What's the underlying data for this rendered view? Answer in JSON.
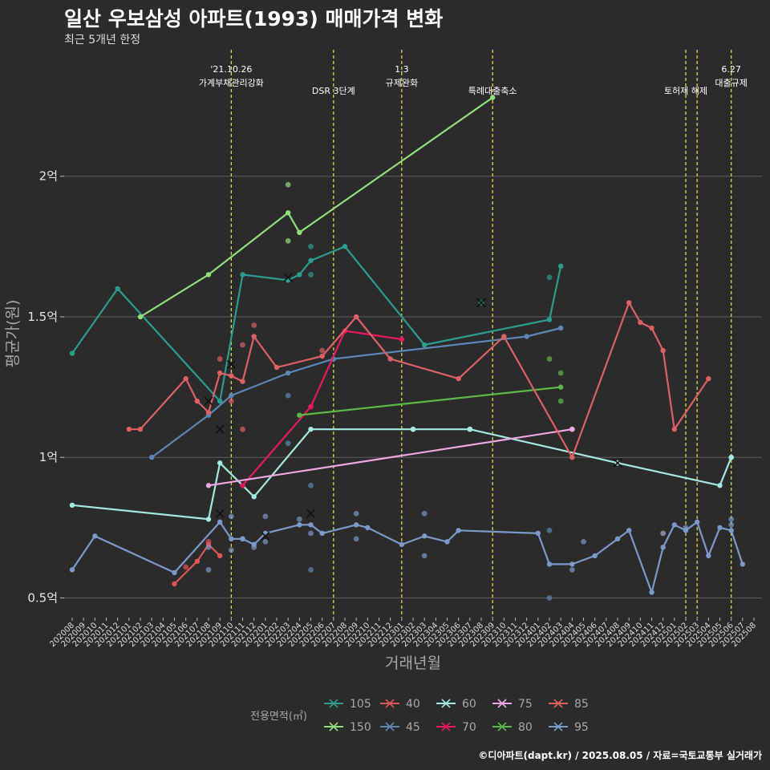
{
  "title": "일산 우보삼성 아파트(1993) 매매가격 변화",
  "subtitle": "최근 5개년 한정",
  "caption": "©디아파트(dapt.kr) / 2025.08.05 / 자료=국토교통부 실거래가",
  "chart_data": {
    "type": "line",
    "xlabel": "거래년월",
    "ylabel": "평균가(원)",
    "ylim": [
      0.43,
      2.45
    ],
    "y_ticks": [
      0.5,
      1,
      1.5,
      2
    ],
    "y_tick_labels": [
      "0.5억",
      "1억",
      "1.5억",
      "2억"
    ],
    "grid": true,
    "x_months": [
      "202008",
      "202009",
      "202010",
      "202011",
      "202012",
      "202101",
      "202102",
      "202103",
      "202104",
      "202105",
      "202106",
      "202107",
      "202108",
      "202109",
      "202110",
      "202111",
      "202112",
      "202201",
      "202202",
      "202203",
      "202204",
      "202205",
      "202206",
      "202207",
      "202208",
      "202209",
      "202210",
      "202211",
      "202212",
      "202301",
      "202302",
      "202303",
      "202304",
      "202305",
      "202306",
      "202307",
      "202308",
      "202309",
      "202310",
      "202311",
      "202312",
      "202401",
      "202402",
      "202403",
      "202404",
      "202405",
      "202406",
      "202407",
      "202408",
      "202409",
      "202410",
      "202411",
      "202412",
      "202501",
      "202502",
      "202503",
      "202504",
      "202505",
      "202506",
      "202507",
      "202508"
    ],
    "events": [
      {
        "month": "202110",
        "label": "'21.10.26\n가계부채관리강화"
      },
      {
        "month": "202207",
        "label": "DSR 3단계"
      },
      {
        "month": "202301",
        "label": "1.3\n규제완화"
      },
      {
        "month": "202309",
        "label": "특례대출축소"
      },
      {
        "month": "202502",
        "label": "토허제 해제"
      },
      {
        "month": "202503",
        "label": ""
      },
      {
        "month": "202506",
        "label": "6.27\n대출규제"
      }
    ],
    "legend_title": "전용면적(㎡)",
    "legend_position": "bottom",
    "series": [
      {
        "name": "105",
        "color": "#2a9d8f",
        "line": [
          [
            "202008",
            1.37
          ],
          [
            "202012",
            1.6
          ],
          [
            "202109",
            1.2
          ],
          [
            "202111",
            1.65
          ],
          [
            "202203",
            1.63
          ],
          [
            "202204",
            1.65
          ],
          [
            "202205",
            1.7
          ],
          [
            "202208",
            1.75
          ],
          [
            "202303",
            1.4
          ],
          [
            "202402",
            1.49
          ],
          [
            "202403",
            1.68
          ]
        ],
        "points": [
          [
            "202205",
            1.75
          ],
          [
            "202205",
            1.65
          ],
          [
            "202402",
            1.64
          ],
          [
            "202308",
            1.55
          ]
        ],
        "crosses": [
          [
            "202308",
            1.55
          ]
        ]
      },
      {
        "name": "150",
        "color": "#8fdf7a",
        "line": [
          [
            "202102",
            1.5
          ],
          [
            "202108",
            1.65
          ],
          [
            "202203",
            1.87
          ],
          [
            "202204",
            1.8
          ],
          [
            "202309",
            2.28
          ]
        ],
        "points": [
          [
            "202203",
            1.97
          ],
          [
            "202203",
            1.77
          ]
        ],
        "crosses": []
      },
      {
        "name": "40",
        "color": "#e05555",
        "line": [
          [
            "202105",
            0.55
          ],
          [
            "202107",
            0.63
          ],
          [
            "202108",
            0.69
          ],
          [
            "202109",
            0.65
          ]
        ],
        "points": [
          [
            "202106",
            0.61
          ],
          [
            "202108",
            0.7
          ],
          [
            "202412",
            0.73
          ]
        ],
        "crosses": []
      },
      {
        "name": "45",
        "color": "#5b87b8",
        "line": [
          [
            "202103",
            1.0
          ],
          [
            "202108",
            1.15
          ],
          [
            "202110",
            1.22
          ],
          [
            "202203",
            1.3
          ],
          [
            "202207",
            1.35
          ],
          [
            "202312",
            1.43
          ],
          [
            "202403",
            1.46
          ]
        ],
        "points": [
          [
            "202203",
            1.22
          ],
          [
            "202203",
            1.05
          ],
          [
            "202205",
            0.9
          ],
          [
            "202205",
            0.6
          ],
          [
            "202402",
            0.74
          ],
          [
            "202402",
            0.5
          ]
        ],
        "crosses": [
          [
            "202203",
            1.64
          ]
        ]
      },
      {
        "name": "60",
        "color": "#a3e8e1",
        "line": [
          [
            "202008",
            0.83
          ],
          [
            "202108",
            0.78
          ],
          [
            "202109",
            0.98
          ],
          [
            "202112",
            0.86
          ],
          [
            "202205",
            1.1
          ],
          [
            "202302",
            1.1
          ],
          [
            "202307",
            1.1
          ],
          [
            "202408",
            0.98
          ],
          [
            "202505",
            0.9
          ],
          [
            "202506",
            1.0
          ]
        ],
        "points": [
          [
            "202302",
            1.1
          ],
          [
            "202307",
            1.1
          ],
          [
            "202408",
            0.98
          ],
          [
            "202506",
            1.0
          ]
        ],
        "crosses": [
          [
            "202408",
            0.98
          ]
        ]
      },
      {
        "name": "70",
        "color": "#e8195e",
        "line": [
          [
            "202111",
            0.9
          ],
          [
            "202205",
            1.18
          ],
          [
            "202208",
            1.45
          ],
          [
            "202301",
            1.42
          ]
        ],
        "points": [],
        "crosses": []
      },
      {
        "name": "75",
        "color": "#f0a6e6",
        "line": [
          [
            "202108",
            0.9
          ],
          [
            "202404",
            1.1
          ]
        ],
        "points": [
          [
            "202404",
            1.1
          ]
        ],
        "crosses": []
      },
      {
        "name": "80",
        "color": "#5bba47",
        "line": [
          [
            "202204",
            1.15
          ],
          [
            "202403",
            1.25
          ]
        ],
        "points": [
          [
            "202402",
            1.35
          ],
          [
            "202403",
            1.3
          ],
          [
            "202403",
            1.2
          ]
        ],
        "crosses": []
      },
      {
        "name": "85",
        "color": "#dd6063",
        "line": [
          [
            "202101",
            1.1
          ],
          [
            "202102",
            1.1
          ],
          [
            "202106",
            1.28
          ],
          [
            "202107",
            1.2
          ],
          [
            "202108",
            1.16
          ],
          [
            "202109",
            1.3
          ],
          [
            "202110",
            1.29
          ],
          [
            "202111",
            1.27
          ],
          [
            "202112",
            1.43
          ],
          [
            "202202",
            1.32
          ],
          [
            "202206",
            1.36
          ],
          [
            "202209",
            1.5
          ],
          [
            "202212",
            1.35
          ],
          [
            "202306",
            1.28
          ],
          [
            "202310",
            1.43
          ],
          [
            "202404",
            1.0
          ],
          [
            "202409",
            1.55
          ],
          [
            "202410",
            1.48
          ],
          [
            "202411",
            1.46
          ],
          [
            "202412",
            1.38
          ],
          [
            "202501",
            1.1
          ],
          [
            "202504",
            1.28
          ]
        ],
        "points": [
          [
            "202109",
            1.35
          ],
          [
            "202111",
            1.4
          ],
          [
            "202112",
            1.47
          ],
          [
            "202110",
            1.2
          ],
          [
            "202111",
            1.1
          ],
          [
            "202206",
            1.38
          ]
        ],
        "crosses": [
          [
            "202108",
            1.2
          ],
          [
            "202109",
            1.1
          ],
          [
            "202110",
            1.33
          ]
        ]
      },
      {
        "name": "95",
        "color": "#7b9acc",
        "line": [
          [
            "202008",
            0.6
          ],
          [
            "202010",
            0.72
          ],
          [
            "202105",
            0.59
          ],
          [
            "202109",
            0.77
          ],
          [
            "202110",
            0.71
          ],
          [
            "202111",
            0.71
          ],
          [
            "202112",
            0.69
          ],
          [
            "202201",
            0.73
          ],
          [
            "202204",
            0.76
          ],
          [
            "202205",
            0.76
          ],
          [
            "202206",
            0.73
          ],
          [
            "202209",
            0.76
          ],
          [
            "202210",
            0.75
          ],
          [
            "202301",
            0.69
          ],
          [
            "202303",
            0.72
          ],
          [
            "202305",
            0.7
          ],
          [
            "202306",
            0.74
          ],
          [
            "202401",
            0.73
          ],
          [
            "202402",
            0.62
          ],
          [
            "202404",
            0.62
          ],
          [
            "202406",
            0.65
          ],
          [
            "202408",
            0.71
          ],
          [
            "202409",
            0.74
          ],
          [
            "202411",
            0.52
          ],
          [
            "202412",
            0.68
          ],
          [
            "202501",
            0.76
          ],
          [
            "202502",
            0.74
          ],
          [
            "202503",
            0.77
          ],
          [
            "202504",
            0.65
          ],
          [
            "202505",
            0.75
          ],
          [
            "202506",
            0.74
          ],
          [
            "202507",
            0.62
          ]
        ],
        "points": [
          [
            "202108",
            0.68
          ],
          [
            "202108",
            0.6
          ],
          [
            "202110",
            0.79
          ],
          [
            "202110",
            0.67
          ],
          [
            "202111",
            0.71
          ],
          [
            "202112",
            0.68
          ],
          [
            "202201",
            0.79
          ],
          [
            "202201",
            0.7
          ],
          [
            "202204",
            0.78
          ],
          [
            "202205",
            0.73
          ],
          [
            "202209",
            0.8
          ],
          [
            "202209",
            0.71
          ],
          [
            "202303",
            0.8
          ],
          [
            "202303",
            0.65
          ],
          [
            "202405",
            0.7
          ],
          [
            "202404",
            0.6
          ],
          [
            "202412",
            0.73
          ],
          [
            "202502",
            0.75
          ],
          [
            "202506",
            0.76
          ],
          [
            "202506",
            0.78
          ]
        ],
        "crosses": [
          [
            "202109",
            0.8
          ],
          [
            "202201",
            0.72
          ],
          [
            "202205",
            0.8
          ]
        ]
      }
    ]
  }
}
